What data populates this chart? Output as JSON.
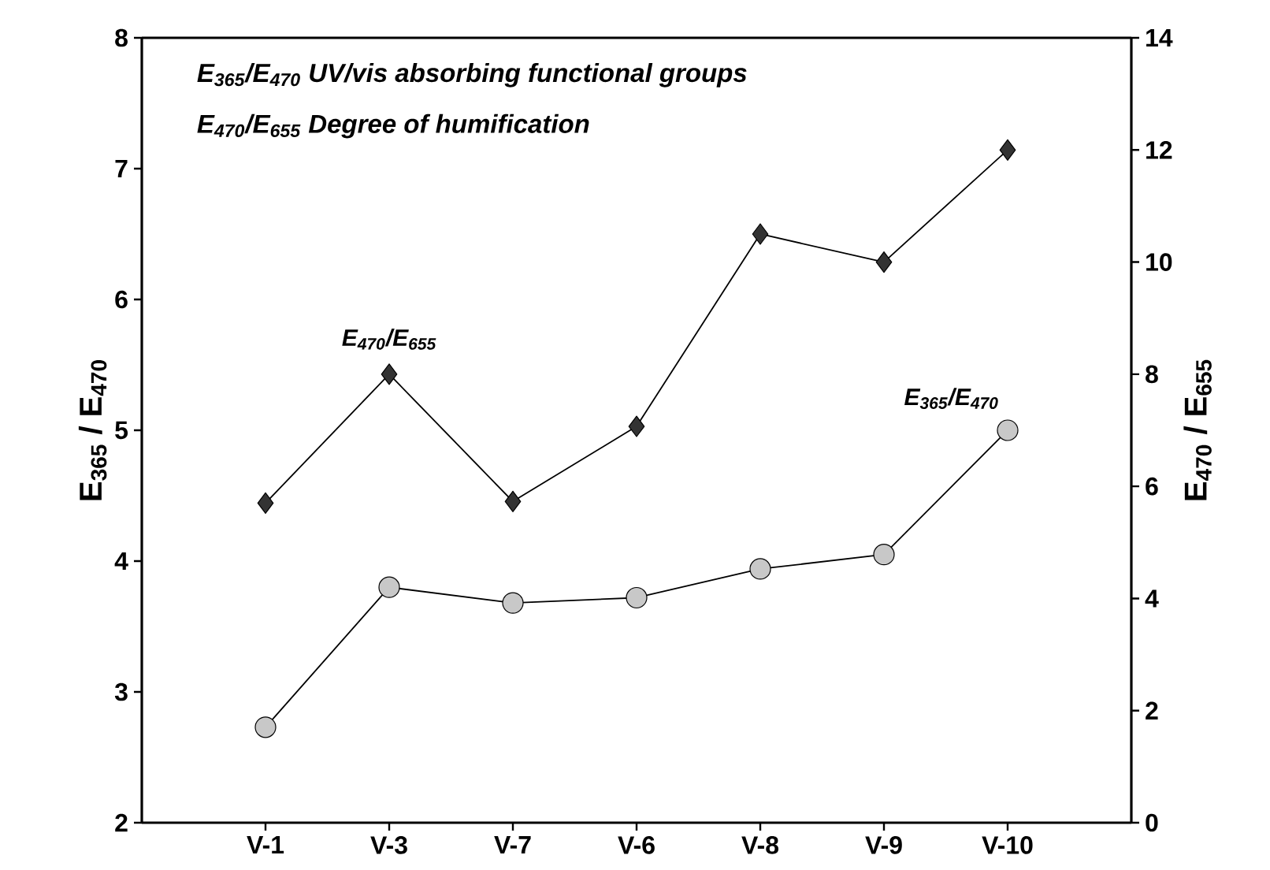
{
  "chart_data": {
    "type": "line",
    "categories": [
      "V-1",
      "V-3",
      "V-7",
      "V-6",
      "V-8",
      "V-9",
      "V-10"
    ],
    "series": [
      {
        "name": "E$_{365}$/E$_{470}$",
        "color": "#c8c8c8",
        "marker": "circle",
        "values": [
          2.73,
          3.8,
          3.68,
          3.72,
          3.94,
          4.05,
          5.0
        ]
      },
      {
        "name": "E$_{470}$/E$_{655}$",
        "color": "#333333",
        "marker": "diamond",
        "axis": "y2",
        "values": [
          5.7,
          8.0,
          5.73,
          7.07,
          10.5,
          10.0,
          12.0
        ]
      }
    ],
    "ylabel": "E$_{365}$ / E$_{470}$",
    "y2label": "E$_{470}$ / E$_{655}$",
    "ylim": [
      2,
      8
    ],
    "yticks": [
      2,
      3,
      4,
      5,
      6,
      7,
      8
    ],
    "y2lim": [
      0,
      14
    ],
    "y2ticks": [
      0,
      2,
      4,
      6,
      8,
      10,
      12,
      14
    ],
    "annotations": [
      "E$_{365}$/E$_{470}$ UV/vis absorbing functional groups",
      "E$_{470}$/E$_{655}$ Degree of humification"
    ]
  }
}
